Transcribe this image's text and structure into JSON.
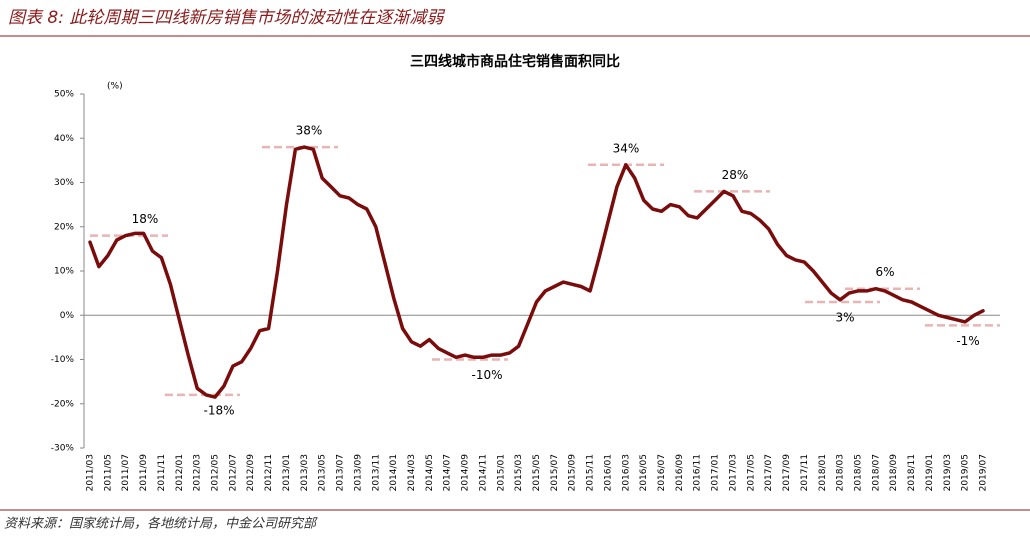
{
  "header": {
    "title": "图表 8: 此轮周期三四线新房销售市场的波动性在逐渐减弱"
  },
  "source": "资料来源：国家统计局，各地统计局，中金公司研究部",
  "chart_data": {
    "type": "line",
    "title": "三四线城市商品住宅销售面积同比",
    "y_label": "(%)",
    "categories": [
      "2011/03",
      null,
      "2011/05",
      null,
      "2011/07",
      null,
      "2011/09",
      null,
      "2011/11",
      null,
      "2012/01",
      null,
      "2012/03",
      null,
      "2012/05",
      null,
      "2012/07",
      null,
      "2012/09",
      null,
      "2012/11",
      null,
      "2013/01",
      null,
      "2013/03",
      null,
      "2013/05",
      null,
      "2013/07",
      null,
      "2013/09",
      null,
      "2013/11",
      null,
      "2014/01",
      null,
      "2014/03",
      null,
      "2014/05",
      null,
      "2014/07",
      null,
      "2014/09",
      null,
      "2014/11",
      null,
      "2015/01",
      null,
      "2015/03",
      null,
      "2015/05",
      null,
      "2015/07",
      null,
      "2015/09",
      null,
      "2015/11",
      null,
      "2016/01",
      null,
      "2016/03",
      null,
      "2016/05",
      null,
      "2016/07",
      null,
      "2016/09",
      null,
      "2016/11",
      null,
      "2017/01",
      null,
      "2017/03",
      null,
      "2017/05",
      null,
      "2017/07",
      null,
      "2017/09",
      null,
      "2017/11",
      null,
      "2018/01",
      null,
      "2018/03",
      null,
      "2018/05",
      null,
      "2018/07",
      null,
      "2018/09",
      null,
      "2018/11",
      null,
      "2019/01",
      null,
      "2019/03",
      null,
      "2019/05",
      null,
      "2019/07"
    ],
    "series": [
      {
        "name": "三四线城市商品住宅销售面积同比",
        "color": "#7b0c0c",
        "values": [
          16.5,
          11,
          13.5,
          17,
          18,
          18.5,
          18.5,
          14.5,
          13,
          7,
          -1,
          -9,
          -16.5,
          -18,
          -18.5,
          -16,
          -11.5,
          -10.5,
          -7.5,
          -3.5,
          -3,
          10,
          25,
          37.5,
          38,
          37.5,
          31,
          29,
          27,
          26.5,
          25,
          24,
          20,
          12,
          4,
          -3,
          -6,
          -7,
          -5.5,
          -7.5,
          -8.5,
          -9.5,
          -9,
          -9.5,
          -9.5,
          -9,
          -9,
          -8.5,
          -7,
          -2,
          3,
          5.5,
          6.5,
          7.5,
          7,
          6.5,
          5.5,
          13,
          21,
          29,
          34,
          31,
          26,
          24,
          23.5,
          25,
          24.5,
          22.5,
          22,
          24,
          26,
          28,
          27,
          23.5,
          23,
          21.5,
          19.5,
          16,
          13.5,
          12.5,
          12,
          10,
          7.5,
          5,
          3.5,
          5,
          5.5,
          5.5,
          6,
          5.5,
          4.5,
          3.5,
          3,
          2,
          1,
          0,
          -0.5,
          -1,
          -1.5,
          0,
          1
        ]
      }
    ],
    "annotations": [
      {
        "value": 18,
        "label": "18%"
      },
      {
        "value": -18,
        "label": "-18%"
      },
      {
        "value": 38,
        "label": "38%"
      },
      {
        "value": -10,
        "label": "-10%"
      },
      {
        "value": 34,
        "label": "34%"
      },
      {
        "value": 28,
        "label": "28%"
      },
      {
        "value": 6,
        "label": "6%"
      },
      {
        "value": 3,
        "label": "3%"
      },
      {
        "value": -1,
        "label": "-1%"
      }
    ],
    "ylim": [
      -30,
      50
    ],
    "yticks": [
      {
        "value": -30,
        "label": "-30%"
      },
      {
        "value": -20,
        "label": "-20%"
      },
      {
        "value": -10,
        "label": "-10%"
      },
      {
        "value": 0,
        "label": "0%"
      },
      {
        "value": 10,
        "label": "10%"
      },
      {
        "value": 20,
        "label": "20%"
      },
      {
        "value": 30,
        "label": "30%"
      },
      {
        "value": 40,
        "label": "40%"
      },
      {
        "value": 50,
        "label": "50%"
      }
    ]
  }
}
